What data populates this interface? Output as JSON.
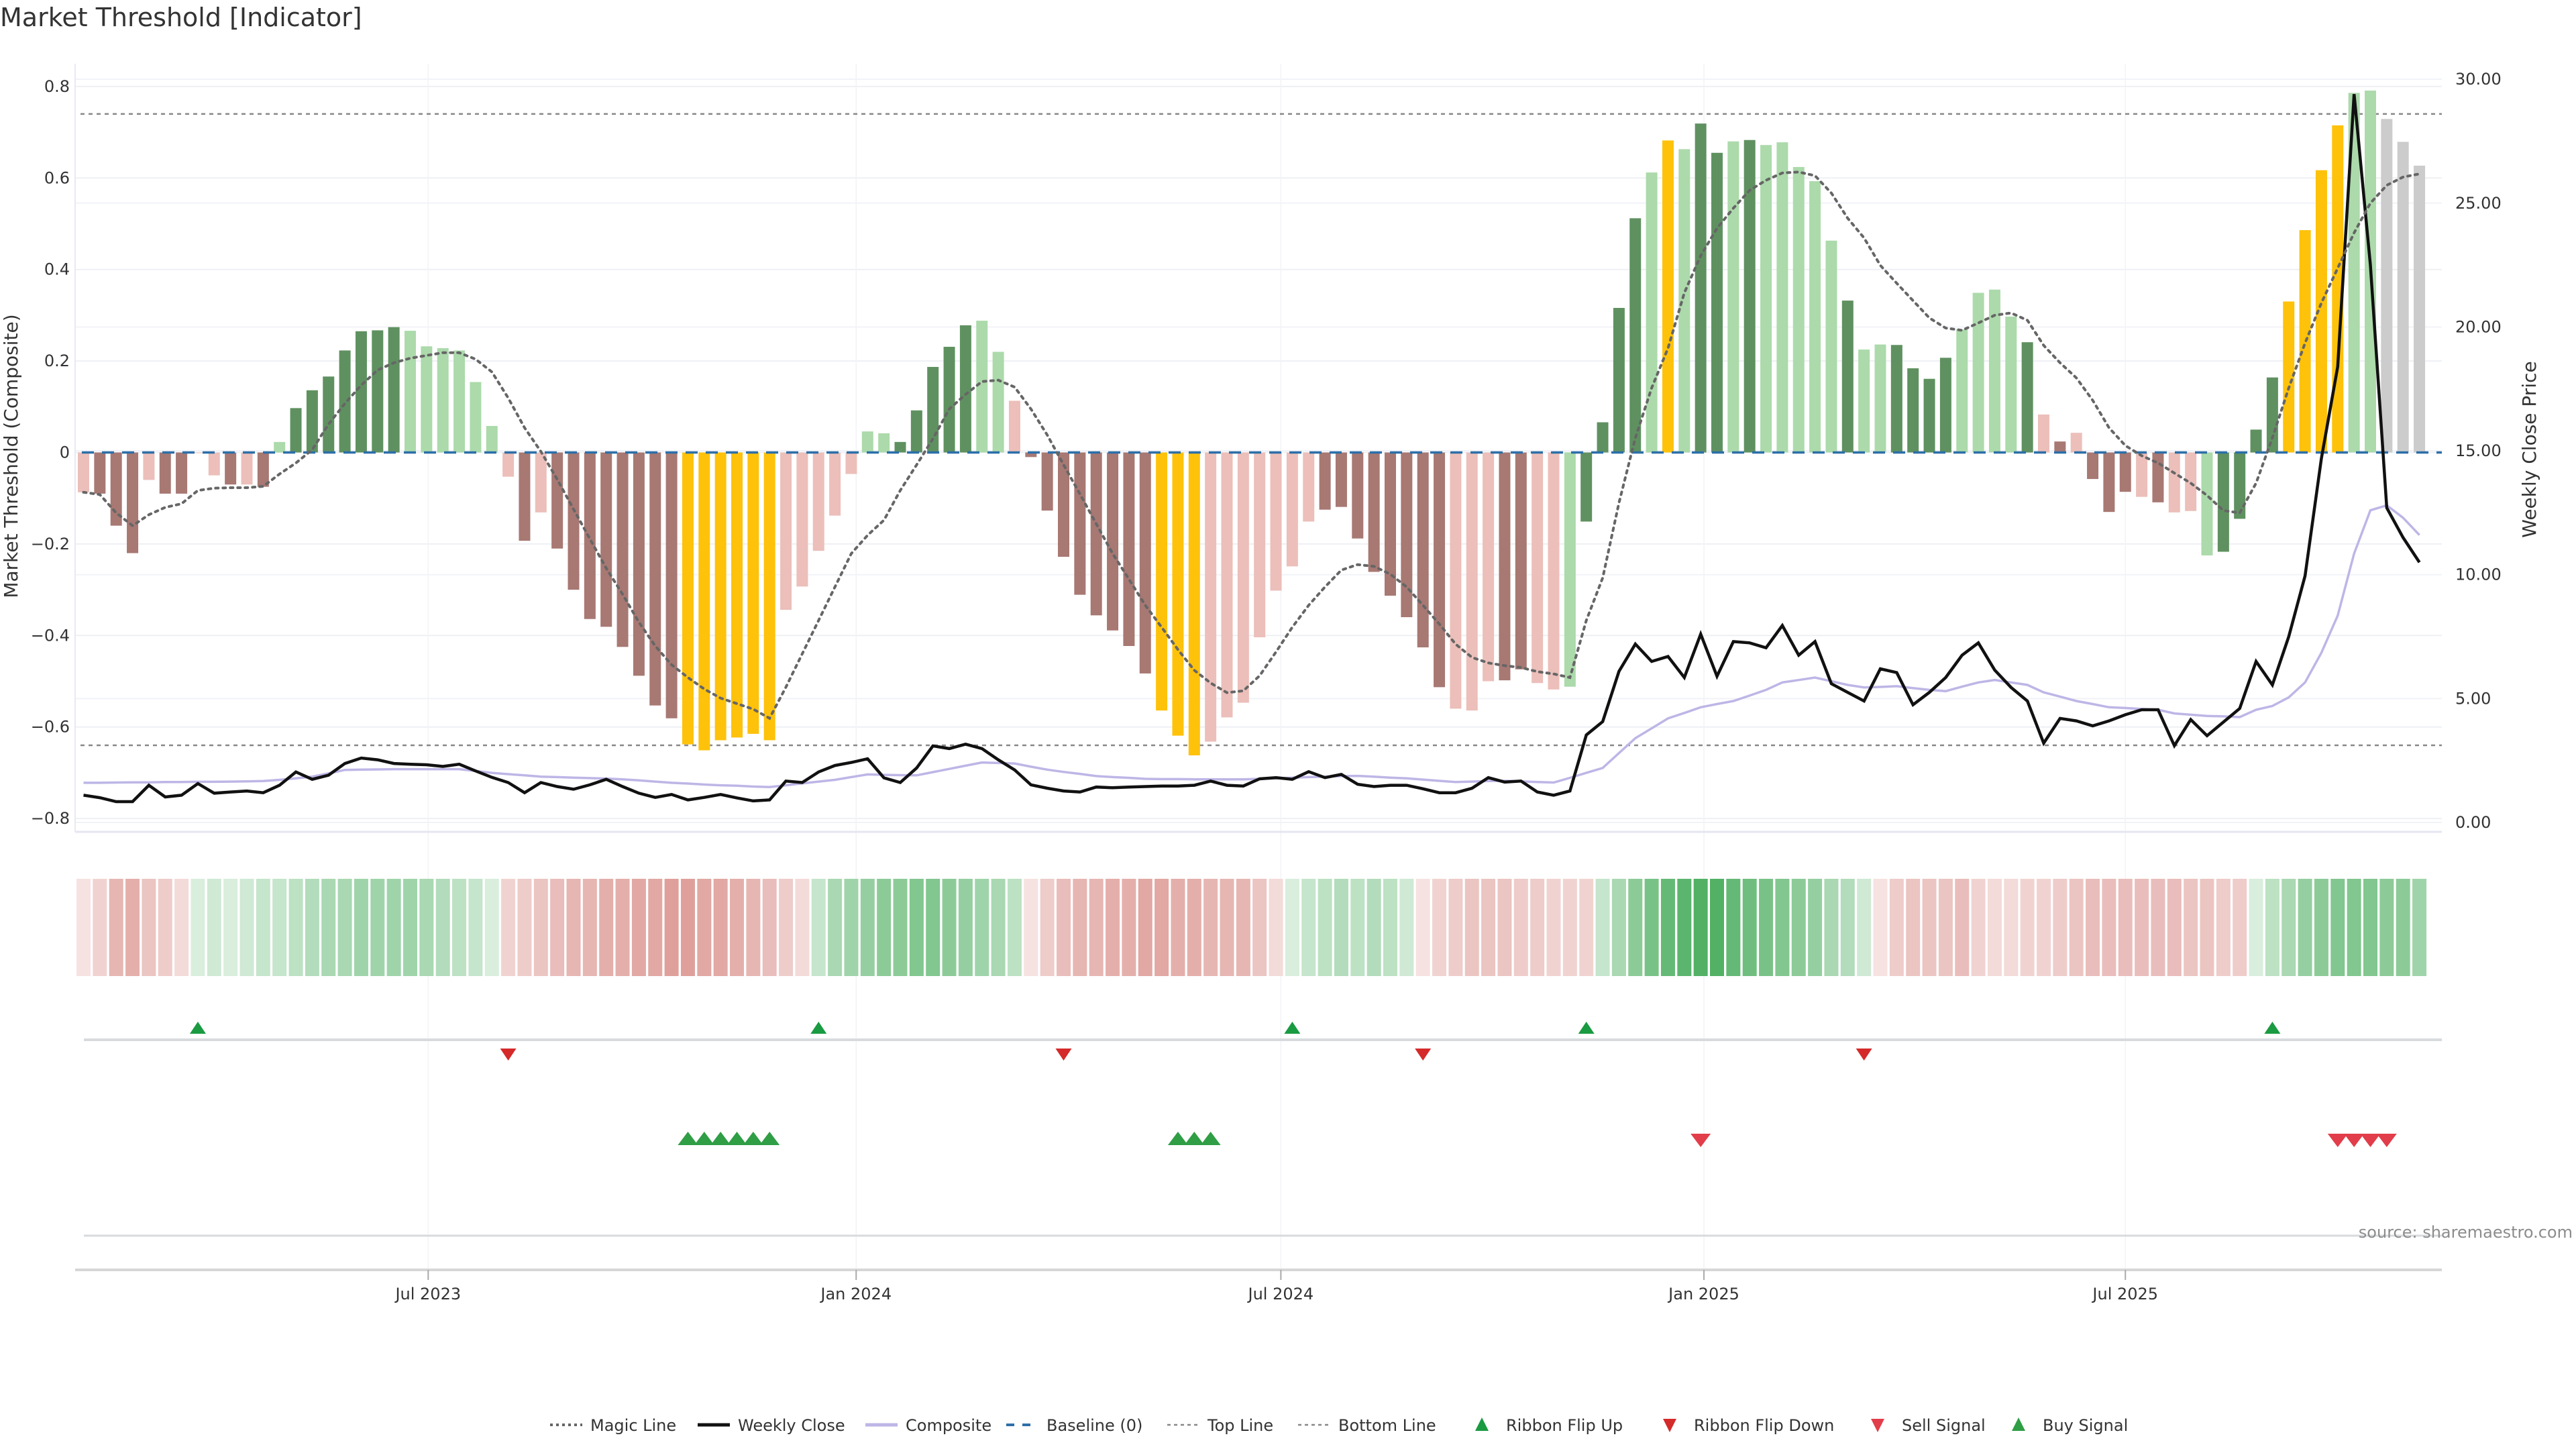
{
  "title": "Market Threshold [Indicator]",
  "source": "source: sharemaestro.com",
  "colors": {
    "bar_dark_green": "#5f9160",
    "bar_light_green": "#acdaab",
    "bar_dark_red": "#a87873",
    "bar_light_red": "#ecbfba",
    "bar_extreme": "#fec20b",
    "magic_line": "#666666",
    "weekly_close": "#111111",
    "composite": "#bdb6e6",
    "baseline": "#2c6fa8",
    "threshold_line": "#888888",
    "ribbon_green": "#3fa854",
    "ribbon_red": "#d98f8a",
    "ribbon_flip_up": "#1a9a41",
    "ribbon_flip_down": "#d42a2a",
    "sell_signal": "#e23d4a",
    "buy_signal": "#2f9e45"
  },
  "chart_data": {
    "type": "bar",
    "title": "Market Threshold [Indicator]",
    "xlabel": "",
    "ylabel": "Market Threshold (Composite)",
    "y2label": "Weekly Close Price",
    "ylim": [
      -0.84,
      0.92
    ],
    "y2lim": [
      0,
      32
    ],
    "yticks": [
      "0.8",
      "0.6",
      "0.4",
      "0.2",
      "0",
      "−0.2",
      "−0.4",
      "−0.6",
      "−0.8"
    ],
    "ytick_values": [
      0.8,
      0.6,
      0.4,
      0.2,
      0,
      -0.2,
      -0.4,
      -0.6,
      -0.8
    ],
    "y2ticks": [
      "30.00",
      "25.00",
      "20.00",
      "15.00",
      "10.00",
      "5.00",
      "0.00"
    ],
    "y2tick_values": [
      30,
      25,
      20,
      15,
      10,
      5,
      0
    ],
    "xticks": [
      {
        "label": "Jul 2023",
        "week": 22.1
      },
      {
        "label": "Jan 2024",
        "week": 48.3
      },
      {
        "label": "Jul 2024",
        "week": 74.3
      },
      {
        "label": "Jan 2025",
        "week": 100.2
      },
      {
        "label": "Jul 2025",
        "week": 126.0
      }
    ],
    "grid": true,
    "top_line": 0.74,
    "bottom_line": -0.64,
    "baseline": 0,
    "bars": {
      "values": [
        -0.087,
        -0.09,
        -0.16,
        -0.22,
        -0.06,
        -0.09,
        -0.09,
        0.0,
        -0.05,
        -0.07,
        -0.07,
        -0.075,
        0.023,
        0.097,
        0.136,
        0.166,
        0.223,
        0.265,
        0.267,
        0.274,
        0.266,
        0.232,
        0.228,
        0.223,
        0.154,
        0.058,
        -0.053,
        -0.193,
        -0.131,
        -0.21,
        -0.3,
        -0.364,
        -0.381,
        -0.425,
        -0.488,
        -0.553,
        -0.581,
        -0.638,
        -0.651,
        -0.629,
        -0.623,
        -0.615,
        -0.629,
        -0.344,
        -0.293,
        -0.215,
        -0.138,
        -0.047,
        0.046,
        0.042,
        0.023,
        0.092,
        0.187,
        0.231,
        0.278,
        0.288,
        0.22,
        0.113,
        -0.01,
        -0.127,
        -0.228,
        -0.311,
        -0.356,
        -0.389,
        -0.423,
        -0.483,
        -0.564,
        -0.619,
        -0.662,
        -0.632,
        -0.579,
        -0.547,
        -0.404,
        -0.302,
        -0.249,
        -0.151,
        -0.125,
        -0.119,
        -0.188,
        -0.261,
        -0.313,
        -0.36,
        -0.426,
        -0.513,
        -0.56,
        -0.564,
        -0.5,
        -0.498,
        -0.474,
        -0.504,
        -0.518,
        -0.512,
        -0.151,
        0.066,
        0.316,
        0.512,
        0.612,
        0.682,
        0.663,
        0.719,
        0.655,
        0.68,
        0.683,
        0.672,
        0.678,
        0.624,
        0.593,
        0.463,
        0.332,
        0.225,
        0.236,
        0.235,
        0.184,
        0.161,
        0.207,
        0.269,
        0.349,
        0.356,
        0.297,
        0.241,
        0.083,
        0.024,
        0.043,
        -0.058,
        -0.13,
        -0.086,
        -0.097,
        -0.109,
        -0.131,
        -0.128,
        -0.225,
        -0.217,
        -0.145,
        0.05,
        0.164,
        0.33,
        0.486,
        0.617,
        0.715,
        0.786,
        0.791,
        0.729,
        0.679,
        0.627
      ],
      "classes": "LDDDLDDLLDLDlGGGGGGGllllllLDLDDDDDDDDYYYYYYLLLLLllGGGGGllLDDDDDDDDYYYLLLLLLLDDDDDDDDLLLDDLLlGGGGlYlGGlGlllllGllGGGGllllGLDLDDDLDLLlGGGGYYYYll",
      "class_legend": {
        "G": "bullish strong",
        "l": "bullish weak",
        "D": "bearish strong",
        "L": "bearish weak",
        "Y": "extreme"
      }
    },
    "series": [
      {
        "name": "Weekly Close",
        "axis": "right",
        "values": [
          1.1,
          1.0,
          0.84,
          0.84,
          1.5,
          1.03,
          1.1,
          1.57,
          1.18,
          1.23,
          1.27,
          1.2,
          1.5,
          2.04,
          1.74,
          1.91,
          2.38,
          2.6,
          2.53,
          2.38,
          2.35,
          2.33,
          2.26,
          2.35,
          2.08,
          1.82,
          1.61,
          1.2,
          1.61,
          1.45,
          1.34,
          1.52,
          1.74,
          1.45,
          1.18,
          1.01,
          1.13,
          0.91,
          1.01,
          1.13,
          0.99,
          0.87,
          0.91,
          1.67,
          1.61,
          2.04,
          2.3,
          2.42,
          2.57,
          1.8,
          1.61,
          2.2,
          3.09,
          2.98,
          3.16,
          2.98,
          2.53,
          2.12,
          1.52,
          1.38,
          1.27,
          1.23,
          1.43,
          1.4,
          1.43,
          1.45,
          1.47,
          1.47,
          1.5,
          1.67,
          1.5,
          1.47,
          1.76,
          1.81,
          1.74,
          2.05,
          1.81,
          1.94,
          1.54,
          1.45,
          1.5,
          1.5,
          1.36,
          1.2,
          1.2,
          1.38,
          1.81,
          1.63,
          1.67,
          1.23,
          1.1,
          1.27,
          3.53,
          4.07,
          6.1,
          7.2,
          6.5,
          6.7,
          5.85,
          7.6,
          5.9,
          7.3,
          7.25,
          7.05,
          7.95,
          6.75,
          7.3,
          5.6,
          5.25,
          4.9,
          6.2,
          6.05,
          4.75,
          5.25,
          5.85,
          6.75,
          7.25,
          6.15,
          5.45,
          4.9,
          3.2,
          4.2,
          4.1,
          3.9,
          4.1,
          4.35,
          4.55,
          4.55,
          3.1,
          4.15,
          3.5,
          4.05,
          4.6,
          6.5,
          5.55,
          7.5,
          9.95,
          14.7,
          18.4,
          29.4,
          22.5,
          12.7,
          11.5,
          10.5
        ]
      },
      {
        "name": "Composite",
        "axis": "right",
        "values": [
          1.6,
          1.6,
          1.61,
          1.62,
          1.62,
          1.63,
          1.63,
          1.64,
          1.64,
          1.65,
          1.66,
          1.67,
          1.72,
          1.78,
          1.85,
          1.98,
          2.12,
          2.13,
          2.14,
          2.15,
          2.15,
          2.15,
          2.15,
          2.15,
          2.08,
          2.0,
          1.95,
          1.9,
          1.85,
          1.83,
          1.81,
          1.79,
          1.77,
          1.74,
          1.7,
          1.65,
          1.6,
          1.57,
          1.53,
          1.5,
          1.48,
          1.45,
          1.43,
          1.5,
          1.58,
          1.65,
          1.72,
          1.83,
          1.94,
          1.92,
          1.91,
          1.9,
          2.03,
          2.16,
          2.29,
          2.42,
          2.4,
          2.38,
          2.25,
          2.13,
          2.04,
          1.96,
          1.87,
          1.83,
          1.8,
          1.76,
          1.75,
          1.75,
          1.74,
          1.74,
          1.74,
          1.74,
          1.76,
          1.78,
          1.81,
          1.83,
          1.85,
          1.87,
          1.88,
          1.85,
          1.81,
          1.78,
          1.73,
          1.68,
          1.63,
          1.65,
          1.67,
          1.68,
          1.66,
          1.63,
          1.61,
          1.8,
          2.0,
          2.2,
          2.8,
          3.4,
          3.8,
          4.2,
          4.42,
          4.65,
          4.78,
          4.9,
          5.12,
          5.35,
          5.65,
          5.75,
          5.85,
          5.7,
          5.55,
          5.45,
          5.47,
          5.5,
          5.42,
          5.35,
          5.3,
          5.48,
          5.65,
          5.75,
          5.65,
          5.55,
          5.25,
          5.08,
          4.9,
          4.78,
          4.65,
          4.62,
          4.58,
          4.55,
          4.4,
          4.35,
          4.3,
          4.28,
          4.25,
          4.55,
          4.7,
          5.05,
          5.65,
          6.85,
          8.35,
          10.85,
          12.6,
          12.8,
          12.3,
          11.6
        ]
      },
      {
        "name": "Magic Line",
        "axis": "left",
        "values": [
          -0.087,
          -0.092,
          -0.132,
          -0.16,
          -0.136,
          -0.12,
          -0.112,
          -0.083,
          -0.078,
          -0.077,
          -0.077,
          -0.074,
          -0.047,
          -0.023,
          0.006,
          0.062,
          0.107,
          0.147,
          0.18,
          0.196,
          0.206,
          0.212,
          0.218,
          0.218,
          0.204,
          0.176,
          0.119,
          0.054,
          0.002,
          -0.059,
          -0.124,
          -0.189,
          -0.253,
          -0.31,
          -0.371,
          -0.423,
          -0.464,
          -0.492,
          -0.517,
          -0.537,
          -0.549,
          -0.561,
          -0.581,
          -0.513,
          -0.44,
          -0.367,
          -0.294,
          -0.221,
          -0.181,
          -0.148,
          -0.083,
          -0.027,
          0.03,
          0.095,
          0.127,
          0.155,
          0.158,
          0.143,
          0.095,
          0.038,
          -0.027,
          -0.091,
          -0.156,
          -0.221,
          -0.277,
          -0.334,
          -0.382,
          -0.431,
          -0.476,
          -0.504,
          -0.525,
          -0.521,
          -0.488,
          -0.436,
          -0.382,
          -0.334,
          -0.294,
          -0.257,
          -0.245,
          -0.249,
          -0.266,
          -0.294,
          -0.334,
          -0.375,
          -0.419,
          -0.448,
          -0.46,
          -0.466,
          -0.47,
          -0.479,
          -0.484,
          -0.492,
          -0.367,
          -0.274,
          -0.11,
          0.032,
          0.141,
          0.228,
          0.349,
          0.43,
          0.49,
          0.534,
          0.573,
          0.595,
          0.611,
          0.613,
          0.605,
          0.567,
          0.512,
          0.469,
          0.409,
          0.37,
          0.332,
          0.294,
          0.272,
          0.267,
          0.283,
          0.3,
          0.305,
          0.289,
          0.234,
          0.196,
          0.163,
          0.114,
          0.054,
          0.015,
          -0.007,
          -0.023,
          -0.045,
          -0.067,
          -0.094,
          -0.127,
          -0.132,
          -0.067,
          0.032,
          0.141,
          0.239,
          0.327,
          0.403,
          0.48,
          0.545,
          0.584,
          0.602,
          0.609
        ]
      }
    ],
    "ribbon": [
      -0.2,
      -0.3,
      -0.5,
      -0.55,
      -0.4,
      -0.35,
      -0.25,
      0.2,
      0.25,
      0.2,
      0.25,
      0.3,
      0.3,
      0.35,
      0.4,
      0.45,
      0.45,
      0.5,
      0.5,
      0.5,
      0.5,
      0.45,
      0.4,
      0.35,
      0.3,
      0.2,
      -0.3,
      -0.35,
      -0.4,
      -0.45,
      -0.5,
      -0.5,
      -0.55,
      -0.55,
      -0.6,
      -0.6,
      -0.65,
      -0.65,
      -0.6,
      -0.6,
      -0.55,
      -0.5,
      -0.45,
      -0.35,
      -0.25,
      0.3,
      0.45,
      0.5,
      0.55,
      0.6,
      0.6,
      0.65,
      0.65,
      0.6,
      0.55,
      0.5,
      0.45,
      0.35,
      -0.2,
      -0.35,
      -0.45,
      -0.5,
      -0.5,
      -0.55,
      -0.55,
      -0.6,
      -0.6,
      -0.55,
      -0.55,
      -0.5,
      -0.5,
      -0.5,
      -0.4,
      -0.25,
      0.2,
      0.3,
      0.35,
      0.4,
      0.35,
      0.4,
      0.35,
      0.25,
      -0.2,
      -0.3,
      -0.35,
      -0.4,
      -0.4,
      -0.4,
      -0.35,
      -0.35,
      -0.3,
      -0.3,
      -0.3,
      0.3,
      0.45,
      0.6,
      0.7,
      0.8,
      0.85,
      0.9,
      0.9,
      0.8,
      0.75,
      0.7,
      0.65,
      0.6,
      0.55,
      0.45,
      0.4,
      0.25,
      -0.2,
      -0.35,
      -0.4,
      -0.4,
      -0.4,
      -0.45,
      -0.3,
      -0.25,
      -0.25,
      -0.3,
      -0.3,
      -0.35,
      -0.4,
      -0.45,
      -0.45,
      -0.45,
      -0.45,
      -0.45,
      -0.45,
      -0.4,
      -0.4,
      -0.35,
      -0.35,
      0.2,
      0.35,
      0.45,
      0.55,
      0.6,
      0.65,
      0.65,
      0.65,
      0.6,
      0.6,
      0.5
    ],
    "ribbon_flip_up_weeks": [
      8,
      46,
      75,
      93,
      135
    ],
    "ribbon_flip_down_weeks": [
      27,
      61,
      83,
      110
    ],
    "buy_signal_weeks": [
      38,
      39,
      40,
      41,
      42,
      43,
      68,
      69,
      70
    ],
    "sell_signal_weeks": [
      100,
      139,
      140,
      141,
      142
    ],
    "legend": [
      {
        "label": "Magic Line",
        "type": "dotted",
        "color": "#666666"
      },
      {
        "label": "Weekly Close",
        "type": "line",
        "color": "#111111"
      },
      {
        "label": "Composite",
        "type": "line",
        "color": "#bdb6e6"
      },
      {
        "label": "Baseline (0)",
        "type": "dashed",
        "color": "#2c6fa8"
      },
      {
        "label": "Top Line",
        "type": "dotted-light",
        "color": "#888888"
      },
      {
        "label": "Bottom Line",
        "type": "dotted-light",
        "color": "#888888"
      },
      {
        "label": "Ribbon Flip Up",
        "type": "tri-up",
        "color": "#1a9a41"
      },
      {
        "label": "Ribbon Flip Down",
        "type": "tri-down",
        "color": "#d42a2a"
      },
      {
        "label": "Sell Signal",
        "type": "tri-down-big",
        "color": "#e23d4a"
      },
      {
        "label": "Buy Signal",
        "type": "tri-up-big",
        "color": "#2f9e45"
      }
    ],
    "legend_position": "bottom-center"
  }
}
